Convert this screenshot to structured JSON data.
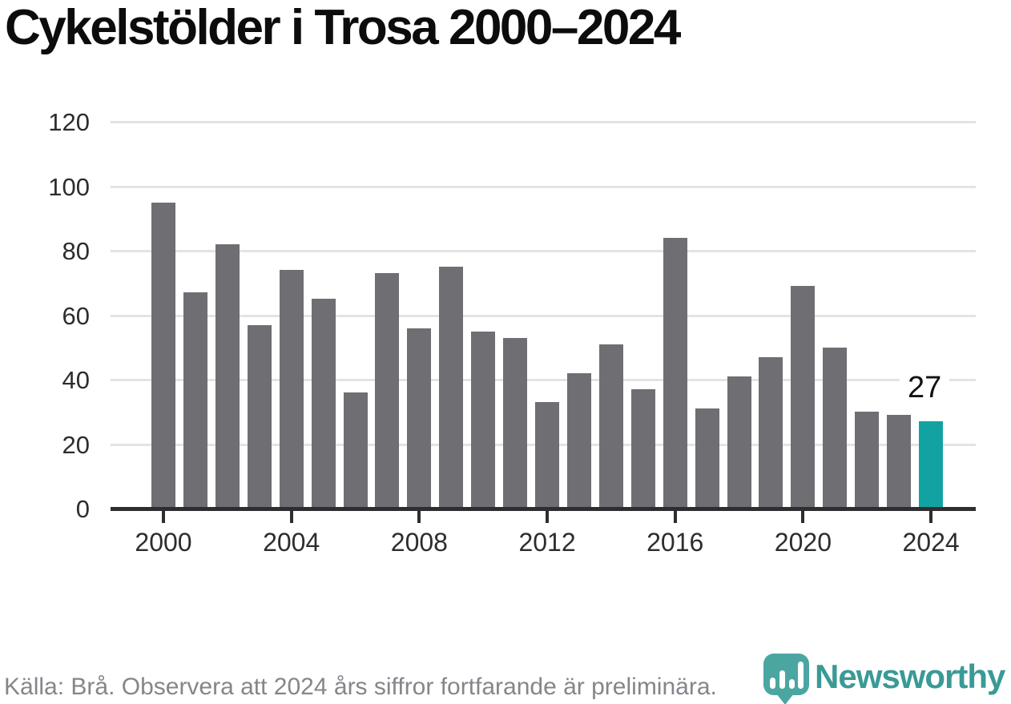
{
  "title": "Cykelstölder i Trosa 2000–2024",
  "source_note": "Källa: Brå. Observera att 2024 års siffror fortfarande är preliminära.",
  "logo": {
    "text": "Newsworthy"
  },
  "annotation": {
    "value_label": "27"
  },
  "colors": {
    "bar": "#6e6e73",
    "highlight": "#12a2a2",
    "gridline": "#e3e3e3",
    "axis": "#2e2e31",
    "title_text": "#0c0c0c",
    "tick_text": "#2d2d30",
    "source_text": "#85858b",
    "logo_teal": "#3a9a96"
  },
  "chart_data": {
    "type": "bar",
    "title": "Cykelstölder i Trosa 2000–2024",
    "categories": [
      "2000",
      "2001",
      "2002",
      "2003",
      "2004",
      "2005",
      "2006",
      "2007",
      "2008",
      "2009",
      "2010",
      "2011",
      "2012",
      "2013",
      "2014",
      "2015",
      "2016",
      "2017",
      "2018",
      "2019",
      "2020",
      "2021",
      "2022",
      "2023",
      "2024"
    ],
    "values": [
      95,
      67,
      82,
      57,
      74,
      65,
      36,
      73,
      56,
      75,
      55,
      53,
      33,
      42,
      51,
      37,
      84,
      31,
      41,
      47,
      69,
      50,
      30,
      29,
      27
    ],
    "highlight_category": "2024",
    "annotated_last_value": 27,
    "xlabel": "",
    "ylabel": "",
    "ylim": [
      0,
      120
    ],
    "y_ticks": [
      0,
      20,
      40,
      60,
      80,
      100,
      120
    ],
    "x_tick_labels": [
      "2000",
      "2004",
      "2008",
      "2012",
      "2016",
      "2020",
      "2024"
    ],
    "grid": true,
    "legend": false
  }
}
